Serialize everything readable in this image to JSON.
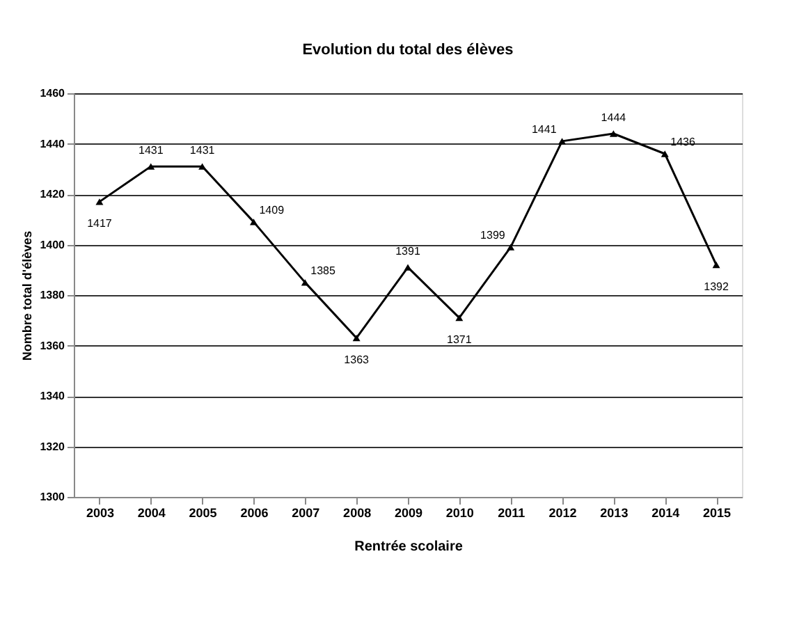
{
  "chart_data": {
    "type": "line",
    "title": "Evolution du total des élèves",
    "xlabel": "Rentrée scolaire",
    "ylabel": "Nombre total d'élèves",
    "categories": [
      "2003",
      "2004",
      "2005",
      "2006",
      "2007",
      "2008",
      "2009",
      "2010",
      "2011",
      "2012",
      "2013",
      "2014",
      "2015"
    ],
    "series": [
      {
        "color": "#000000",
        "values": [
          1417,
          1431,
          1431,
          1409,
          1385,
          1363,
          1391,
          1371,
          1399,
          1441,
          1444,
          1436,
          1392
        ]
      }
    ],
    "ylim": [
      1300,
      1460
    ],
    "yticks": [
      1300,
      1320,
      1340,
      1360,
      1380,
      1400,
      1420,
      1440,
      1460
    ],
    "grid": "y",
    "marker": "triangle",
    "line_style": "solid",
    "data_labels": true,
    "legend": false
  }
}
